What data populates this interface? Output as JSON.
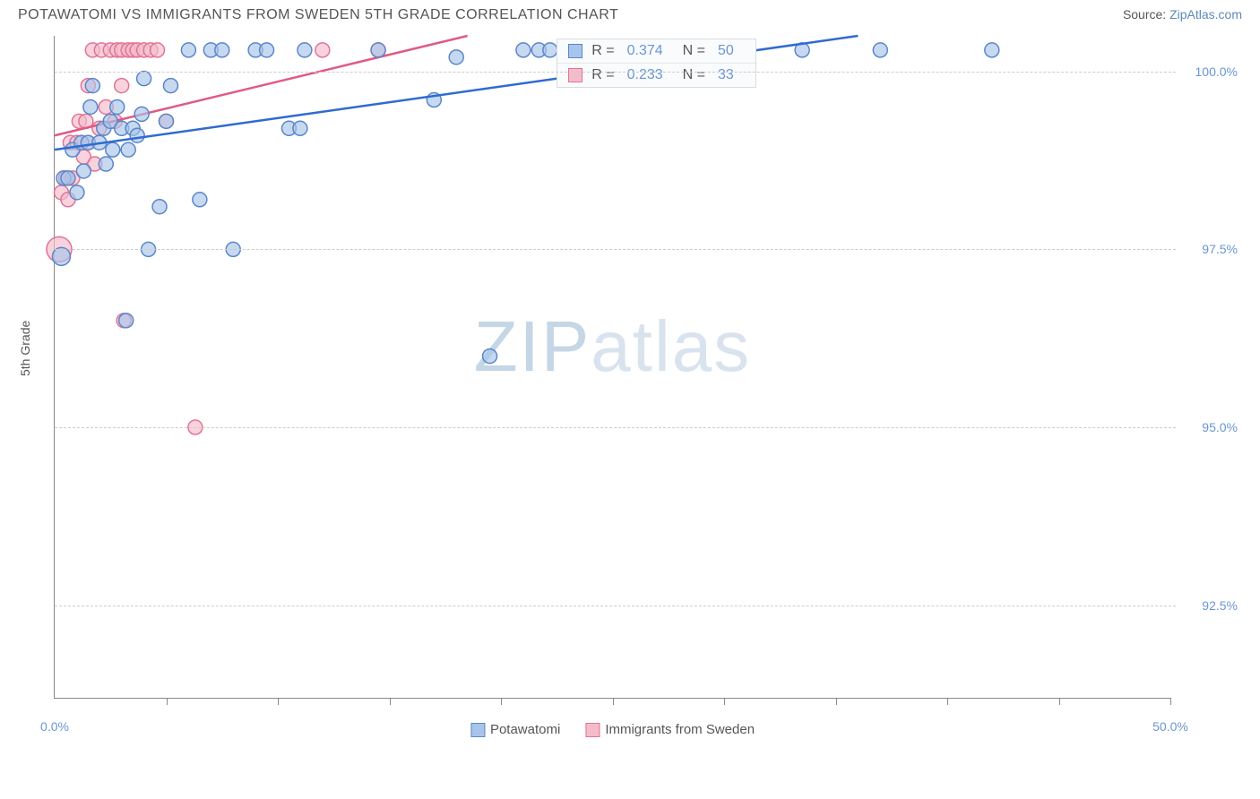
{
  "header": {
    "title": "POTAWATOMI VS IMMIGRANTS FROM SWEDEN 5TH GRADE CORRELATION CHART",
    "source_prefix": "Source: ",
    "source_link": "ZipAtlas.com"
  },
  "axes": {
    "y_label": "5th Grade",
    "x_min": 0.0,
    "x_max": 50.0,
    "y_min": 91.2,
    "y_max": 100.5,
    "y_ticks": [
      {
        "v": 100.0,
        "label": "100.0%"
      },
      {
        "v": 97.5,
        "label": "97.5%"
      },
      {
        "v": 95.0,
        "label": "95.0%"
      },
      {
        "v": 92.5,
        "label": "92.5%"
      }
    ],
    "x_tick_positions": [
      5,
      10,
      15,
      20,
      25,
      30,
      35,
      40,
      45,
      50
    ],
    "x_tick_labels": [
      {
        "v": 0.0,
        "label": "0.0%"
      },
      {
        "v": 50.0,
        "label": "50.0%"
      }
    ]
  },
  "series": {
    "a": {
      "name": "Potawatomi",
      "fill": "#a7c5ea",
      "stroke": "#5b86c9",
      "line_color": "#2f6bd0",
      "r_label": "R = ",
      "r_value": "0.374",
      "n_label": "N = ",
      "n_value": "50",
      "trend": {
        "x1": 0.0,
        "y1": 98.9,
        "x2": 36.0,
        "y2": 100.5
      },
      "points": [
        {
          "x": 0.3,
          "y": 97.4,
          "r": 10
        },
        {
          "x": 0.4,
          "y": 98.5,
          "r": 8
        },
        {
          "x": 0.6,
          "y": 98.5,
          "r": 8
        },
        {
          "x": 0.8,
          "y": 98.9,
          "r": 8
        },
        {
          "x": 1.0,
          "y": 98.3,
          "r": 8
        },
        {
          "x": 1.2,
          "y": 99.0,
          "r": 8
        },
        {
          "x": 1.3,
          "y": 98.6,
          "r": 8
        },
        {
          "x": 1.5,
          "y": 99.0,
          "r": 8
        },
        {
          "x": 1.6,
          "y": 99.5,
          "r": 8
        },
        {
          "x": 1.7,
          "y": 99.8,
          "r": 8
        },
        {
          "x": 2.0,
          "y": 99.0,
          "r": 8
        },
        {
          "x": 2.2,
          "y": 99.2,
          "r": 8
        },
        {
          "x": 2.3,
          "y": 98.7,
          "r": 8
        },
        {
          "x": 2.5,
          "y": 99.3,
          "r": 8
        },
        {
          "x": 2.6,
          "y": 98.9,
          "r": 8
        },
        {
          "x": 2.8,
          "y": 99.5,
          "r": 8
        },
        {
          "x": 3.0,
          "y": 99.2,
          "r": 8
        },
        {
          "x": 3.3,
          "y": 98.9,
          "r": 8
        },
        {
          "x": 3.5,
          "y": 99.2,
          "r": 8
        },
        {
          "x": 3.7,
          "y": 99.1,
          "r": 8
        },
        {
          "x": 3.2,
          "y": 96.5,
          "r": 8
        },
        {
          "x": 4.0,
          "y": 99.9,
          "r": 8
        },
        {
          "x": 3.9,
          "y": 99.4,
          "r": 8
        },
        {
          "x": 4.2,
          "y": 97.5,
          "r": 8
        },
        {
          "x": 4.7,
          "y": 98.1,
          "r": 8
        },
        {
          "x": 5.0,
          "y": 99.3,
          "r": 8
        },
        {
          "x": 5.2,
          "y": 99.8,
          "r": 8
        },
        {
          "x": 6.0,
          "y": 100.3,
          "r": 8
        },
        {
          "x": 6.5,
          "y": 98.2,
          "r": 8
        },
        {
          "x": 7.0,
          "y": 100.3,
          "r": 8
        },
        {
          "x": 7.5,
          "y": 100.3,
          "r": 8
        },
        {
          "x": 8.0,
          "y": 97.5,
          "r": 8
        },
        {
          "x": 9.0,
          "y": 100.3,
          "r": 8
        },
        {
          "x": 9.5,
          "y": 100.3,
          "r": 8
        },
        {
          "x": 10.5,
          "y": 99.2,
          "r": 8
        },
        {
          "x": 11.0,
          "y": 99.2,
          "r": 8
        },
        {
          "x": 11.2,
          "y": 100.3,
          "r": 8
        },
        {
          "x": 14.5,
          "y": 100.3,
          "r": 8
        },
        {
          "x": 17.0,
          "y": 99.6,
          "r": 8
        },
        {
          "x": 18.0,
          "y": 100.2,
          "r": 8
        },
        {
          "x": 19.5,
          "y": 96.0,
          "r": 8
        },
        {
          "x": 21.0,
          "y": 100.3,
          "r": 8
        },
        {
          "x": 21.7,
          "y": 100.3,
          "r": 8
        },
        {
          "x": 22.2,
          "y": 100.3,
          "r": 8
        },
        {
          "x": 25.8,
          "y": 100.3,
          "r": 8
        },
        {
          "x": 27.5,
          "y": 100.3,
          "r": 8
        },
        {
          "x": 31.0,
          "y": 100.3,
          "r": 8
        },
        {
          "x": 33.5,
          "y": 100.3,
          "r": 8
        },
        {
          "x": 37.0,
          "y": 100.3,
          "r": 8
        },
        {
          "x": 42.0,
          "y": 100.3,
          "r": 8
        }
      ]
    },
    "b": {
      "name": "Immigrants from Sweden",
      "fill": "#f4bccb",
      "stroke": "#e27396",
      "line_color": "#e05a85",
      "r_label": "R = ",
      "r_value": "0.233",
      "n_label": "N = ",
      "n_value": "33",
      "trend": {
        "x1": 0.0,
        "y1": 99.1,
        "x2": 18.5,
        "y2": 100.5
      },
      "points": [
        {
          "x": 0.2,
          "y": 97.5,
          "r": 14
        },
        {
          "x": 0.3,
          "y": 98.3,
          "r": 8
        },
        {
          "x": 0.5,
          "y": 98.5,
          "r": 8
        },
        {
          "x": 0.6,
          "y": 98.2,
          "r": 8
        },
        {
          "x": 0.7,
          "y": 99.0,
          "r": 8
        },
        {
          "x": 0.8,
          "y": 98.5,
          "r": 8
        },
        {
          "x": 1.0,
          "y": 99.0,
          "r": 8
        },
        {
          "x": 1.1,
          "y": 99.3,
          "r": 8
        },
        {
          "x": 1.3,
          "y": 98.8,
          "r": 8
        },
        {
          "x": 1.4,
          "y": 99.3,
          "r": 8
        },
        {
          "x": 1.5,
          "y": 99.8,
          "r": 8
        },
        {
          "x": 1.5,
          "y": 99.0,
          "r": 8
        },
        {
          "x": 1.7,
          "y": 100.3,
          "r": 8
        },
        {
          "x": 1.8,
          "y": 98.7,
          "r": 8
        },
        {
          "x": 2.1,
          "y": 100.3,
          "r": 8
        },
        {
          "x": 2.0,
          "y": 99.2,
          "r": 8
        },
        {
          "x": 2.3,
          "y": 99.5,
          "r": 8
        },
        {
          "x": 2.5,
          "y": 100.3,
          "r": 8
        },
        {
          "x": 2.7,
          "y": 99.3,
          "r": 8
        },
        {
          "x": 2.8,
          "y": 100.3,
          "r": 8
        },
        {
          "x": 3.0,
          "y": 99.8,
          "r": 8
        },
        {
          "x": 3.0,
          "y": 100.3,
          "r": 8
        },
        {
          "x": 3.1,
          "y": 96.5,
          "r": 8
        },
        {
          "x": 3.3,
          "y": 100.3,
          "r": 8
        },
        {
          "x": 3.5,
          "y": 100.3,
          "r": 8
        },
        {
          "x": 3.7,
          "y": 100.3,
          "r": 8
        },
        {
          "x": 4.0,
          "y": 100.3,
          "r": 8
        },
        {
          "x": 4.3,
          "y": 100.3,
          "r": 8
        },
        {
          "x": 4.6,
          "y": 100.3,
          "r": 8
        },
        {
          "x": 5.0,
          "y": 99.3,
          "r": 8
        },
        {
          "x": 6.3,
          "y": 95.0,
          "r": 8
        },
        {
          "x": 12.0,
          "y": 100.3,
          "r": 8
        },
        {
          "x": 14.5,
          "y": 100.3,
          "r": 8
        }
      ]
    }
  },
  "watermark": {
    "zip": "ZIP",
    "atlas": "atlas"
  },
  "colors": {
    "grid": "#cccccc",
    "axis": "#888888",
    "text": "#555555",
    "value": "#6a96d4"
  }
}
